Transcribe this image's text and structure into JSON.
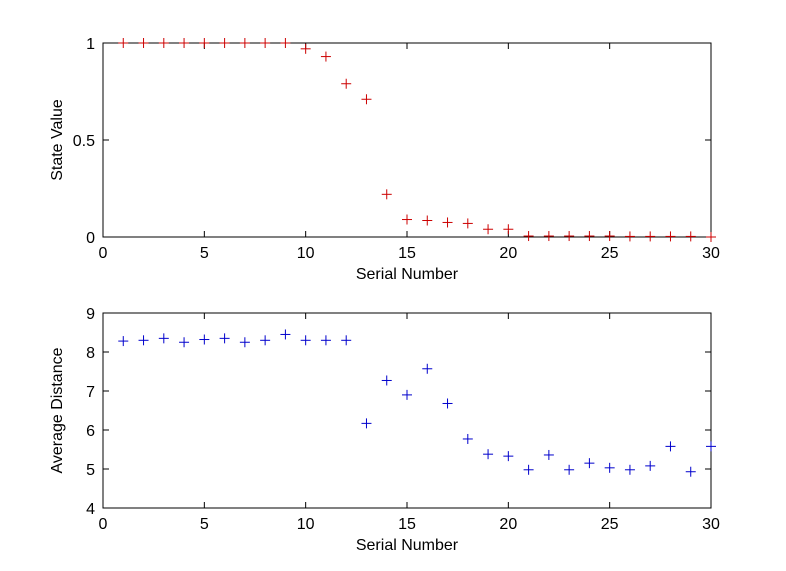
{
  "chart_data": [
    {
      "type": "scatter",
      "marker": "+",
      "color": "#cc0000",
      "xlabel": "Serial Number",
      "ylabel": "State Value",
      "xlim": [
        0,
        30
      ],
      "ylim": [
        0,
        1
      ],
      "xticks": [
        0,
        5,
        10,
        15,
        20,
        25,
        30
      ],
      "yticks": [
        0,
        0.5,
        1
      ],
      "grid": false,
      "x": [
        1,
        2,
        3,
        4,
        5,
        6,
        7,
        8,
        9,
        10,
        11,
        12,
        13,
        14,
        15,
        16,
        17,
        18,
        19,
        20,
        21,
        22,
        23,
        24,
        25,
        26,
        27,
        28,
        29,
        30
      ],
      "y": [
        1,
        1,
        1,
        1,
        1,
        1,
        1,
        1,
        1,
        0.97,
        0.93,
        0.79,
        0.71,
        0.22,
        0.09,
        0.085,
        0.075,
        0.07,
        0.04,
        0.04,
        0.005,
        0.005,
        0.005,
        0.005,
        0.005,
        0.003,
        0.003,
        0.003,
        0.003,
        0.0
      ]
    },
    {
      "type": "scatter",
      "marker": "+",
      "color": "#0000cc",
      "xlabel": "Serial Number",
      "ylabel": "Average Distance",
      "xlim": [
        0,
        30
      ],
      "ylim": [
        4,
        9
      ],
      "xticks": [
        0,
        5,
        10,
        15,
        20,
        25,
        30
      ],
      "yticks": [
        4,
        5,
        6,
        7,
        8,
        9
      ],
      "grid": false,
      "x": [
        1,
        2,
        3,
        4,
        5,
        6,
        7,
        8,
        9,
        10,
        11,
        12,
        13,
        14,
        15,
        16,
        17,
        18,
        19,
        20,
        21,
        22,
        23,
        24,
        25,
        26,
        27,
        28,
        29,
        30
      ],
      "y": [
        8.28,
        8.3,
        8.35,
        8.25,
        8.32,
        8.35,
        8.25,
        8.3,
        8.45,
        8.3,
        8.3,
        8.3,
        6.17,
        7.27,
        6.9,
        7.57,
        6.68,
        5.77,
        5.38,
        5.33,
        4.98,
        5.36,
        4.98,
        5.15,
        5.03,
        4.98,
        5.08,
        5.58,
        4.93,
        5.58
      ]
    }
  ]
}
